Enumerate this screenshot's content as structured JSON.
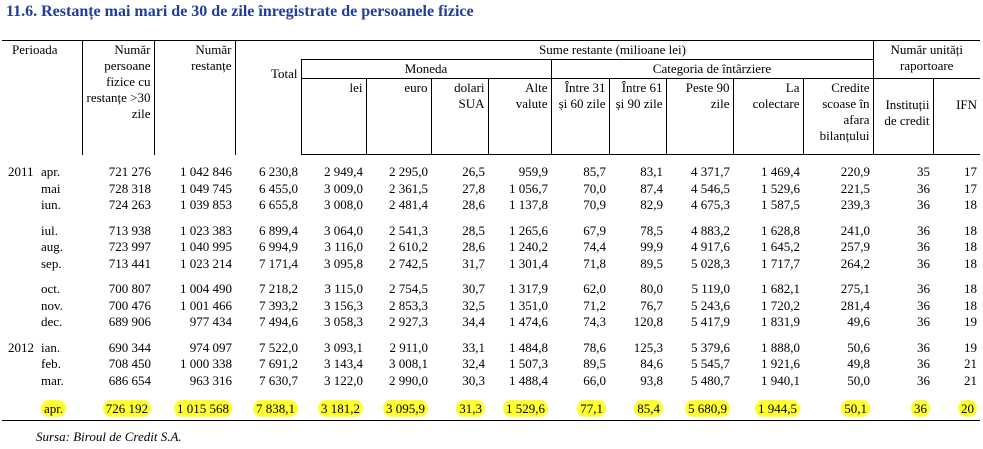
{
  "title": "11.6. Restanțe mai mari de 30 de zile înregistrate de persoanele fizice",
  "headers": {
    "perioada": "Perioada",
    "persoane": "Număr persoane fizice cu restanțe >30 zile",
    "restante": "Număr restanțe",
    "sume": "Sume restante (milioane lei)",
    "total": "Total",
    "moneda": "Moneda",
    "lei": "lei",
    "euro": "euro",
    "dolari": "dolari SUA",
    "alte": "Alte valute",
    "categoria": "Categoria de întârziere",
    "intre31": "Între 31 și 60 zile",
    "intre61": "Între 61 și 90 zile",
    "peste90": "Peste 90 zile",
    "colectare": "La colectare",
    "credite": "Credite scoase în afara bilanțului",
    "unitati": "Număr unități raportoare",
    "institutii": "Instituții de credit",
    "ifn": "IFN"
  },
  "highlight_color": "#ffff33",
  "groups": [
    {
      "rows": [
        [
          "2011",
          "apr.",
          "721 276",
          "1 042 846",
          "6 230,8",
          "2 949,4",
          "2 295,0",
          "26,5",
          "959,9",
          "85,7",
          "83,1",
          "4 371,7",
          "1 469,4",
          "220,9",
          "35",
          "17"
        ],
        [
          "",
          "mai",
          "728 318",
          "1 049 745",
          "6 455,0",
          "3 009,0",
          "2 361,5",
          "27,8",
          "1 056,7",
          "70,0",
          "87,4",
          "4 546,5",
          "1 529,6",
          "221,5",
          "36",
          "17"
        ],
        [
          "",
          "iun.",
          "724 263",
          "1 039 853",
          "6 655,8",
          "3 008,0",
          "2 481,4",
          "28,6",
          "1 137,8",
          "70,9",
          "82,9",
          "4 675,3",
          "1 587,5",
          "239,3",
          "36",
          "18"
        ]
      ]
    },
    {
      "rows": [
        [
          "",
          "iul.",
          "713 938",
          "1 023 383",
          "6 899,4",
          "3 064,0",
          "2 541,3",
          "28,5",
          "1 265,6",
          "67,9",
          "78,5",
          "4 883,2",
          "1 628,8",
          "241,0",
          "36",
          "18"
        ],
        [
          "",
          "aug.",
          "723 997",
          "1 040 995",
          "6 994,9",
          "3 116,0",
          "2 610,2",
          "28,6",
          "1 240,2",
          "74,4",
          "99,9",
          "4 917,6",
          "1 645,2",
          "257,9",
          "36",
          "18"
        ],
        [
          "",
          "sep.",
          "713 441",
          "1 023 214",
          "7 171,4",
          "3 095,8",
          "2 742,5",
          "31,7",
          "1 301,4",
          "71,8",
          "89,5",
          "5 028,3",
          "1 717,7",
          "264,2",
          "36",
          "18"
        ]
      ]
    },
    {
      "rows": [
        [
          "",
          "oct.",
          "700 807",
          "1 004 490",
          "7 218,2",
          "3 115,0",
          "2 754,5",
          "30,7",
          "1 317,9",
          "62,0",
          "80,0",
          "5 119,0",
          "1 682,1",
          "275,1",
          "36",
          "18"
        ],
        [
          "",
          "nov.",
          "700 476",
          "1 001 466",
          "7 393,2",
          "3 156,3",
          "2 853,3",
          "32,5",
          "1 351,0",
          "71,2",
          "76,7",
          "5 243,6",
          "1 720,2",
          "281,4",
          "36",
          "18"
        ],
        [
          "",
          "dec.",
          "689 906",
          "977 434",
          "7 494,6",
          "3 058,3",
          "2 927,3",
          "34,4",
          "1 474,6",
          "74,3",
          "120,8",
          "5 417,9",
          "1 831,9",
          "49,6",
          "36",
          "19"
        ]
      ]
    },
    {
      "rows": [
        [
          "2012",
          "ian.",
          "690 344",
          "974 097",
          "7 522,0",
          "3 093,1",
          "2 911,0",
          "33,1",
          "1 484,8",
          "78,6",
          "125,3",
          "5 379,6",
          "1 888,0",
          "50,6",
          "36",
          "19"
        ],
        [
          "",
          "feb.",
          "708 450",
          "1 000 338",
          "7 691,2",
          "3 143,4",
          "3 008,1",
          "32,4",
          "1 507,3",
          "89,5",
          "84,6",
          "5 545,7",
          "1 921,6",
          "49,8",
          "36",
          "21"
        ],
        [
          "",
          "mar.",
          "686 654",
          "963 316",
          "7 630,7",
          "3 122,0",
          "2 990,0",
          "30,3",
          "1 488,4",
          "66,0",
          "93,8",
          "5 480,7",
          "1 940,1",
          "50,0",
          "36",
          "21"
        ]
      ]
    }
  ],
  "last_row": [
    "",
    "apr.",
    "726 192",
    "1 015 568",
    "7 838,1",
    "3 181,2",
    "3 095,9",
    "31,3",
    "1 529,6",
    "77,1",
    "85,4",
    "5 680,9",
    "1 944,5",
    "50,1",
    "36",
    "20"
  ],
  "source": "Sursa:  Biroul de Credit S.A."
}
